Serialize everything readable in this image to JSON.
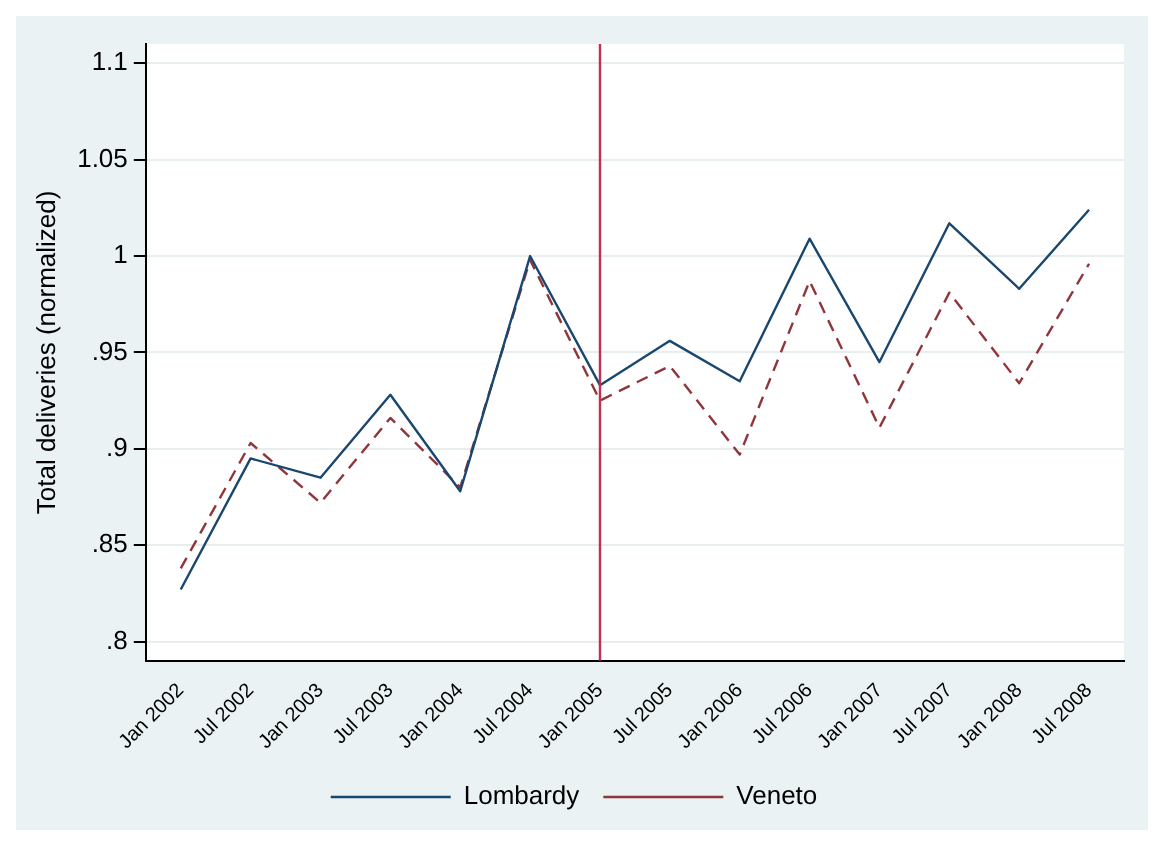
{
  "chart_data": {
    "type": "line",
    "ylabel": "Total deliveries (normalized)",
    "categories": [
      "Jan 2002",
      "Jul 2002",
      "Jan 2003",
      "Jul 2003",
      "Jan 2004",
      "Jul 2004",
      "Jan 2005",
      "Jul 2005",
      "Jan 2006",
      "Jul 2006",
      "Jan 2007",
      "Jul 2007",
      "Jan 2008",
      "Jul 2008"
    ],
    "series": [
      {
        "name": "Lombardy",
        "color": "#1a476f",
        "line_style": "solid",
        "values": [
          0.827,
          0.895,
          0.885,
          0.928,
          0.878,
          1.0,
          0.933,
          0.956,
          0.935,
          1.009,
          0.945,
          1.017,
          0.983,
          1.024
        ]
      },
      {
        "name": "Veneto",
        "color": "#90353b",
        "line_style": "dashed",
        "values": [
          0.838,
          0.903,
          0.872,
          0.916,
          0.88,
          0.998,
          0.925,
          0.943,
          0.897,
          0.987,
          0.911,
          0.981,
          0.934,
          0.996
        ]
      }
    ],
    "ylim": [
      0.79,
      1.11
    ],
    "yticks": [
      {
        "value": 0.8,
        "label": ".8"
      },
      {
        "value": 0.85,
        "label": ".85"
      },
      {
        "value": 0.9,
        "label": ".9"
      },
      {
        "value": 0.95,
        "label": ".95"
      },
      {
        "value": 1,
        "label": "1"
      },
      {
        "value": 1.05,
        "label": "1.05"
      },
      {
        "value": 1.1,
        "label": "1.1"
      }
    ],
    "ref_lines": [
      {
        "axis": "x",
        "value": "Jan 2005",
        "color": "#c0304f"
      }
    ],
    "grid": "y",
    "legend": "bottom",
    "marker": "none"
  }
}
